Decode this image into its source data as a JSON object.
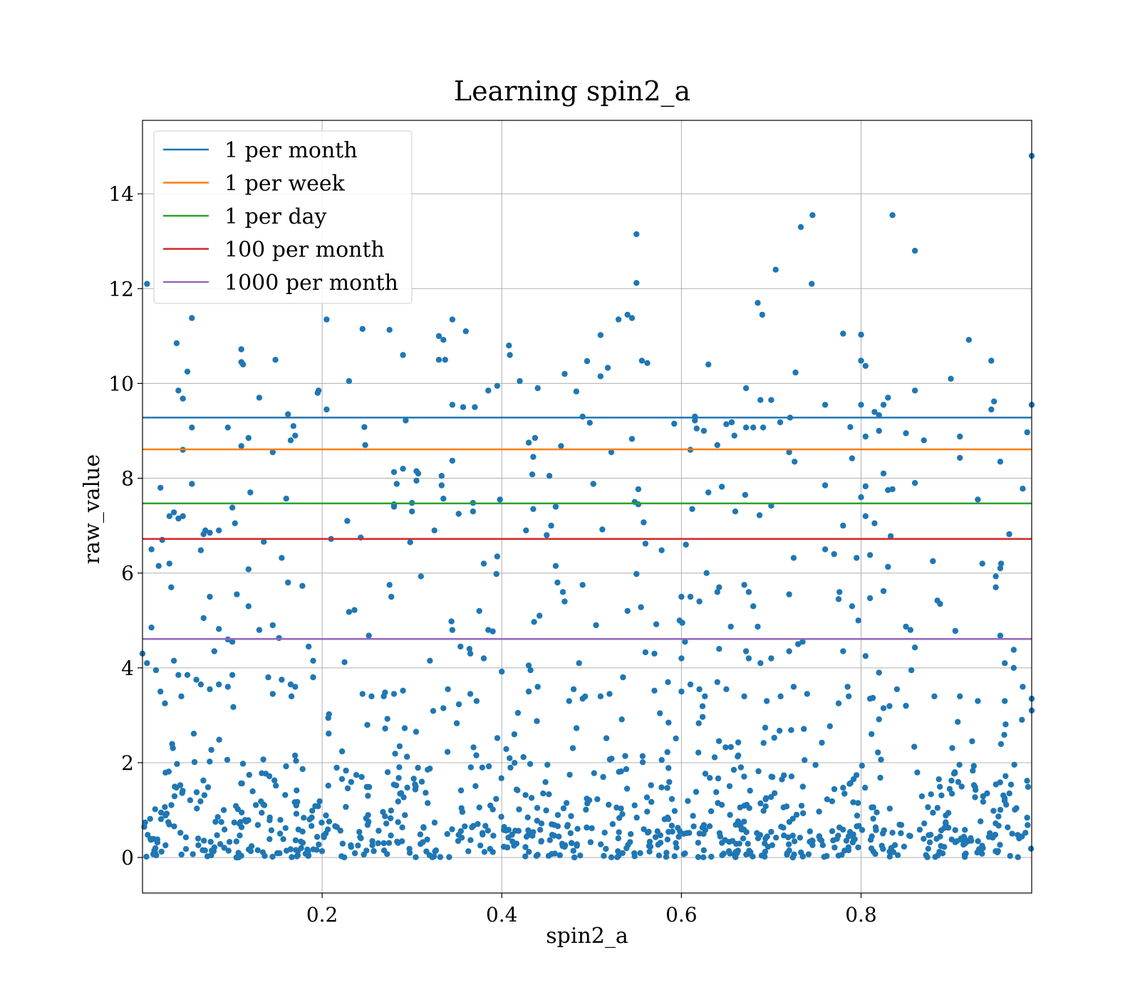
{
  "chart_data": {
    "type": "scatter",
    "title": "Learning spin2_a",
    "xlabel": "spin2_a",
    "ylabel": "raw_value",
    "xlim": [
      0.0,
      0.99
    ],
    "ylim": [
      -0.75,
      15.55
    ],
    "xticks": [
      0.2,
      0.4,
      0.6,
      0.8
    ],
    "xtick_labels": [
      "0.2",
      "0.4",
      "0.6",
      "0.8"
    ],
    "yticks": [
      0,
      2,
      4,
      6,
      8,
      10,
      12,
      14
    ],
    "ytick_labels": [
      "0",
      "2",
      "4",
      "6",
      "8",
      "10",
      "12",
      "14"
    ],
    "grid": true,
    "legend_position": "top-left",
    "point_color": "#1f77b4",
    "thresholds": [
      {
        "name": "1 per month",
        "value": 9.28,
        "color": "#1f77b4"
      },
      {
        "name": "1 per week",
        "value": 8.61,
        "color": "#ff7f0e"
      },
      {
        "name": "1 per day",
        "value": 7.47,
        "color": "#2ca02c"
      },
      {
        "name": "100 per month",
        "value": 6.72,
        "color": "#d62728"
      },
      {
        "name": "1000 per month",
        "value": 4.61,
        "color": "#9467bd"
      }
    ],
    "points": [
      [
        0.005,
        12.1
      ],
      [
        0.99,
        14.8
      ],
      [
        0.55,
        13.15
      ],
      [
        0.746,
        13.55
      ],
      [
        0.733,
        13.3
      ],
      [
        0.835,
        13.55
      ],
      [
        0.86,
        12.8
      ],
      [
        0.705,
        12.4
      ],
      [
        0.745,
        12.1
      ],
      [
        0.55,
        12.12
      ],
      [
        0.055,
        11.38
      ],
      [
        0.205,
        11.35
      ],
      [
        0.36,
        11.1
      ],
      [
        0.345,
        11.35
      ],
      [
        0.53,
        11.35
      ],
      [
        0.54,
        11.45
      ],
      [
        0.545,
        11.38
      ],
      [
        0.685,
        11.7
      ],
      [
        0.69,
        11.45
      ],
      [
        0.78,
        11.05
      ],
      [
        0.8,
        11.03
      ],
      [
        0.245,
        11.15
      ],
      [
        0.275,
        11.13
      ],
      [
        0.33,
        11.0
      ],
      [
        0.335,
        10.92
      ],
      [
        0.038,
        10.85
      ],
      [
        0.11,
        10.72
      ],
      [
        0.11,
        10.45
      ],
      [
        0.112,
        10.4
      ],
      [
        0.148,
        10.5
      ],
      [
        0.23,
        10.05
      ],
      [
        0.29,
        10.6
      ],
      [
        0.33,
        10.5
      ],
      [
        0.337,
        10.5
      ],
      [
        0.408,
        10.8
      ],
      [
        0.409,
        10.6
      ],
      [
        0.47,
        10.2
      ],
      [
        0.495,
        10.47
      ],
      [
        0.51,
        10.15
      ],
      [
        0.518,
        10.33
      ],
      [
        0.51,
        11.02
      ],
      [
        0.556,
        10.48
      ],
      [
        0.562,
        10.43
      ],
      [
        0.63,
        10.4
      ],
      [
        0.727,
        10.23
      ],
      [
        0.8,
        10.48
      ],
      [
        0.805,
        10.37
      ],
      [
        0.9,
        10.1
      ],
      [
        0.92,
        10.92
      ],
      [
        0.945,
        10.48
      ],
      [
        0.05,
        10.25
      ],
      [
        0.04,
        9.85
      ],
      [
        0.045,
        9.68
      ],
      [
        0.13,
        9.7
      ],
      [
        0.195,
        9.8
      ],
      [
        0.196,
        9.85
      ],
      [
        0.395,
        9.95
      ],
      [
        0.385,
        9.85
      ],
      [
        0.42,
        10.05
      ],
      [
        0.44,
        9.9
      ],
      [
        0.483,
        9.83
      ],
      [
        0.672,
        9.9
      ],
      [
        0.688,
        9.65
      ],
      [
        0.7,
        9.65
      ],
      [
        0.76,
        9.55
      ],
      [
        0.8,
        9.55
      ],
      [
        0.825,
        9.55
      ],
      [
        0.83,
        9.7
      ],
      [
        0.86,
        9.85
      ],
      [
        0.948,
        9.62
      ],
      [
        0.99,
        9.55
      ],
      [
        0.945,
        9.45
      ],
      [
        0.162,
        9.35
      ],
      [
        0.205,
        9.45
      ],
      [
        0.345,
        9.55
      ],
      [
        0.357,
        9.5
      ],
      [
        0.37,
        9.5
      ],
      [
        0.293,
        9.22
      ],
      [
        0.49,
        9.3
      ],
      [
        0.615,
        9.3
      ],
      [
        0.615,
        9.22
      ],
      [
        0.656,
        9.18
      ],
      [
        0.721,
        9.28
      ],
      [
        0.71,
        9.18
      ],
      [
        0.815,
        9.4
      ],
      [
        0.82,
        9.33
      ],
      [
        0.055,
        9.07
      ],
      [
        0.095,
        9.07
      ],
      [
        0.168,
        9.1
      ],
      [
        0.17,
        8.9
      ],
      [
        0.247,
        9.08
      ],
      [
        0.498,
        9.17
      ],
      [
        0.592,
        9.15
      ],
      [
        0.617,
        9.05
      ],
      [
        0.625,
        9.0
      ],
      [
        0.65,
        9.14
      ],
      [
        0.659,
        8.9
      ],
      [
        0.672,
        9.07
      ],
      [
        0.68,
        9.07
      ],
      [
        0.691,
        9.07
      ],
      [
        0.788,
        9.08
      ],
      [
        0.805,
        8.88
      ],
      [
        0.82,
        9.0
      ],
      [
        0.85,
        8.95
      ],
      [
        0.87,
        8.8
      ],
      [
        0.91,
        8.88
      ],
      [
        0.985,
        8.97
      ],
      [
        0.045,
        8.6
      ],
      [
        0.11,
        8.68
      ],
      [
        0.118,
        8.85
      ],
      [
        0.145,
        8.55
      ],
      [
        0.165,
        8.8
      ],
      [
        0.248,
        8.7
      ],
      [
        0.43,
        8.75
      ],
      [
        0.435,
        8.45
      ],
      [
        0.437,
        8.85
      ],
      [
        0.466,
        8.68
      ],
      [
        0.522,
        8.55
      ],
      [
        0.545,
        8.83
      ],
      [
        0.61,
        8.6
      ],
      [
        0.64,
        8.7
      ],
      [
        0.72,
        8.55
      ],
      [
        0.726,
        8.35
      ],
      [
        0.79,
        8.42
      ],
      [
        0.825,
        8.1
      ],
      [
        0.91,
        8.43
      ],
      [
        0.955,
        8.35
      ],
      [
        0.02,
        7.8
      ],
      [
        0.055,
        7.88
      ],
      [
        0.12,
        7.7
      ],
      [
        0.16,
        7.57
      ],
      [
        0.29,
        8.2
      ],
      [
        0.28,
        8.13
      ],
      [
        0.283,
        7.88
      ],
      [
        0.305,
        8.15
      ],
      [
        0.305,
        7.95
      ],
      [
        0.307,
        8.1
      ],
      [
        0.333,
        8.05
      ],
      [
        0.345,
        8.37
      ],
      [
        0.333,
        7.85
      ],
      [
        0.453,
        8.05
      ],
      [
        0.434,
        8.08
      ],
      [
        0.552,
        7.77
      ],
      [
        0.502,
        7.88
      ],
      [
        0.63,
        7.7
      ],
      [
        0.645,
        7.82
      ],
      [
        0.671,
        7.65
      ],
      [
        0.76,
        7.85
      ],
      [
        0.8,
        7.6
      ],
      [
        0.805,
        7.83
      ],
      [
        0.83,
        7.75
      ],
      [
        0.835,
        7.77
      ],
      [
        0.86,
        7.9
      ],
      [
        0.98,
        7.78
      ],
      [
        0.03,
        7.2
      ],
      [
        0.035,
        7.28
      ],
      [
        0.04,
        7.15
      ],
      [
        0.045,
        7.2
      ],
      [
        0.1,
        7.38
      ],
      [
        0.103,
        7.05
      ],
      [
        0.07,
        6.9
      ],
      [
        0.075,
        6.85
      ],
      [
        0.085,
        6.9
      ],
      [
        0.28,
        7.45
      ],
      [
        0.28,
        7.4
      ],
      [
        0.3,
        7.3
      ],
      [
        0.3,
        7.48
      ],
      [
        0.335,
        7.57
      ],
      [
        0.352,
        7.25
      ],
      [
        0.368,
        7.3
      ],
      [
        0.368,
        7.48
      ],
      [
        0.398,
        7.55
      ],
      [
        0.435,
        7.35
      ],
      [
        0.46,
        7.4
      ],
      [
        0.548,
        7.5
      ],
      [
        0.552,
        7.45
      ],
      [
        0.558,
        7.07
      ],
      [
        0.612,
        7.35
      ],
      [
        0.66,
        7.3
      ],
      [
        0.687,
        7.22
      ],
      [
        0.7,
        7.42
      ],
      [
        0.78,
        7.0
      ],
      [
        0.805,
        7.2
      ],
      [
        0.815,
        7.05
      ],
      [
        0.93,
        7.55
      ],
      [
        0.965,
        6.82
      ],
      [
        0.01,
        6.5
      ],
      [
        0.022,
        6.7
      ],
      [
        0.018,
        6.15
      ],
      [
        0.03,
        6.2
      ],
      [
        0.065,
        6.48
      ],
      [
        0.068,
        6.82
      ],
      [
        0.118,
        6.08
      ],
      [
        0.135,
        6.66
      ],
      [
        0.155,
        6.32
      ],
      [
        0.21,
        6.72
      ],
      [
        0.228,
        7.1
      ],
      [
        0.243,
        6.75
      ],
      [
        0.298,
        6.65
      ],
      [
        0.325,
        6.9
      ],
      [
        0.38,
        6.2
      ],
      [
        0.395,
        6.35
      ],
      [
        0.394,
        5.98
      ],
      [
        0.427,
        6.9
      ],
      [
        0.45,
        6.8
      ],
      [
        0.455,
        7.0
      ],
      [
        0.512,
        6.92
      ],
      [
        0.56,
        6.62
      ],
      [
        0.578,
        6.48
      ],
      [
        0.605,
        6.6
      ],
      [
        0.725,
        6.32
      ],
      [
        0.76,
        6.5
      ],
      [
        0.77,
        6.4
      ],
      [
        0.795,
        6.32
      ],
      [
        0.81,
        6.38
      ],
      [
        0.83,
        6.13
      ],
      [
        0.833,
        6.78
      ],
      [
        0.88,
        6.25
      ],
      [
        0.935,
        6.2
      ],
      [
        0.955,
        6.1
      ],
      [
        0.956,
        6.2
      ],
      [
        0.95,
        5.93
      ],
      [
        0.032,
        5.7
      ],
      [
        0.075,
        5.5
      ],
      [
        0.105,
        5.55
      ],
      [
        0.162,
        5.8
      ],
      [
        0.178,
        5.73
      ],
      [
        0.275,
        5.75
      ],
      [
        0.277,
        5.5
      ],
      [
        0.31,
        5.93
      ],
      [
        0.46,
        6.15
      ],
      [
        0.462,
        5.8
      ],
      [
        0.468,
        5.6
      ],
      [
        0.47,
        5.4
      ],
      [
        0.49,
        5.75
      ],
      [
        0.55,
        5.98
      ],
      [
        0.6,
        5.5
      ],
      [
        0.61,
        5.5
      ],
      [
        0.62,
        5.4
      ],
      [
        0.628,
        6.0
      ],
      [
        0.64,
        5.6
      ],
      [
        0.642,
        5.7
      ],
      [
        0.67,
        5.75
      ],
      [
        0.675,
        5.6
      ],
      [
        0.68,
        5.3
      ],
      [
        0.72,
        5.55
      ],
      [
        0.775,
        5.45
      ],
      [
        0.776,
        5.6
      ],
      [
        0.79,
        5.3
      ],
      [
        0.797,
        5.0
      ],
      [
        0.81,
        5.47
      ],
      [
        0.825,
        5.62
      ],
      [
        0.885,
        5.42
      ],
      [
        0.888,
        5.35
      ],
      [
        0.95,
        5.7
      ],
      [
        0.01,
        4.85
      ],
      [
        0.068,
        5.05
      ],
      [
        0.085,
        4.82
      ],
      [
        0.095,
        4.6
      ],
      [
        0.1,
        4.55
      ],
      [
        0.118,
        5.3
      ],
      [
        0.13,
        4.8
      ],
      [
        0.145,
        4.9
      ],
      [
        0.152,
        4.63
      ],
      [
        0.23,
        5.18
      ],
      [
        0.236,
        5.22
      ],
      [
        0.252,
        4.68
      ],
      [
        0.344,
        4.98
      ],
      [
        0.345,
        4.8
      ],
      [
        0.375,
        5.2
      ],
      [
        0.385,
        4.8
      ],
      [
        0.39,
        4.77
      ],
      [
        0.436,
        4.97
      ],
      [
        0.442,
        5.1
      ],
      [
        0.505,
        4.9
      ],
      [
        0.54,
        5.2
      ],
      [
        0.555,
        5.28
      ],
      [
        0.572,
        4.92
      ],
      [
        0.598,
        5.0
      ],
      [
        0.601,
        4.95
      ],
      [
        0.604,
        4.55
      ],
      [
        0.655,
        4.87
      ],
      [
        0.685,
        4.87
      ],
      [
        0.735,
        4.55
      ],
      [
        0.85,
        4.87
      ],
      [
        0.855,
        4.8
      ],
      [
        0.86,
        4.43
      ],
      [
        0.905,
        4.78
      ],
      [
        0.955,
        4.68
      ],
      [
        0.0,
        4.3
      ],
      [
        0.005,
        4.1
      ],
      [
        0.035,
        4.15
      ],
      [
        0.08,
        4.35
      ],
      [
        0.185,
        4.45
      ],
      [
        0.19,
        4.15
      ],
      [
        0.225,
        4.12
      ],
      [
        0.32,
        4.15
      ],
      [
        0.354,
        4.45
      ],
      [
        0.365,
        4.3
      ],
      [
        0.364,
        4.4
      ],
      [
        0.38,
        4.2
      ],
      [
        0.4,
        3.92
      ],
      [
        0.43,
        4.05
      ],
      [
        0.432,
        3.95
      ],
      [
        0.486,
        4.1
      ],
      [
        0.56,
        4.33
      ],
      [
        0.57,
        4.3
      ],
      [
        0.6,
        4.2
      ],
      [
        0.642,
        4.4
      ],
      [
        0.672,
        4.35
      ],
      [
        0.675,
        4.2
      ],
      [
        0.688,
        4.1
      ],
      [
        0.7,
        4.2
      ],
      [
        0.72,
        4.35
      ],
      [
        0.73,
        4.5
      ],
      [
        0.78,
        4.35
      ],
      [
        0.805,
        4.25
      ],
      [
        0.82,
        3.9
      ],
      [
        0.856,
        3.95
      ],
      [
        0.97,
        4.38
      ],
      [
        0.96,
        4.1
      ],
      [
        0.97,
        4.0
      ],
      [
        0.015,
        3.95
      ],
      [
        0.02,
        3.5
      ],
      [
        0.025,
        3.25
      ],
      [
        0.04,
        3.85
      ],
      [
        0.05,
        3.85
      ],
      [
        0.06,
        3.75
      ],
      [
        0.065,
        3.65
      ],
      [
        0.075,
        3.55
      ],
      [
        0.085,
        3.65
      ],
      [
        0.095,
        3.6
      ],
      [
        0.1,
        3.85
      ],
      [
        0.14,
        3.8
      ],
      [
        0.145,
        3.45
      ],
      [
        0.155,
        3.75
      ],
      [
        0.165,
        3.65
      ],
      [
        0.17,
        3.6
      ],
      [
        0.19,
        3.8
      ],
      [
        0.245,
        3.45
      ],
      [
        0.255,
        3.4
      ],
      [
        0.27,
        3.48
      ],
      [
        0.28,
        3.45
      ],
      [
        0.29,
        3.52
      ],
      [
        0.335,
        3.15
      ],
      [
        0.34,
        3.55
      ],
      [
        0.365,
        3.45
      ],
      [
        0.372,
        3.3
      ],
      [
        0.418,
        3.05
      ],
      [
        0.43,
        3.5
      ],
      [
        0.44,
        3.6
      ],
      [
        0.475,
        3.3
      ],
      [
        0.48,
        3.55
      ],
      [
        0.49,
        3.35
      ],
      [
        0.51,
        3.4
      ],
      [
        0.52,
        3.45
      ],
      [
        0.535,
        3.8
      ],
      [
        0.57,
        3.52
      ],
      [
        0.585,
        3.7
      ],
      [
        0.6,
        3.5
      ],
      [
        0.61,
        3.65
      ],
      [
        0.62,
        3.55
      ],
      [
        0.64,
        3.7
      ],
      [
        0.65,
        3.55
      ],
      [
        0.67,
        3.4
      ],
      [
        0.695,
        3.3
      ],
      [
        0.725,
        3.6
      ],
      [
        0.74,
        3.45
      ],
      [
        0.775,
        3.25
      ],
      [
        0.785,
        3.6
      ],
      [
        0.81,
        3.35
      ],
      [
        0.825,
        3.15
      ],
      [
        0.84,
        3.55
      ],
      [
        0.85,
        3.2
      ],
      [
        0.91,
        3.4
      ],
      [
        0.93,
        3.3
      ],
      [
        0.96,
        3.3
      ],
      [
        0.98,
        3.6
      ],
      [
        0.99,
        3.1
      ],
      [
        0.99,
        3.35
      ]
    ]
  }
}
